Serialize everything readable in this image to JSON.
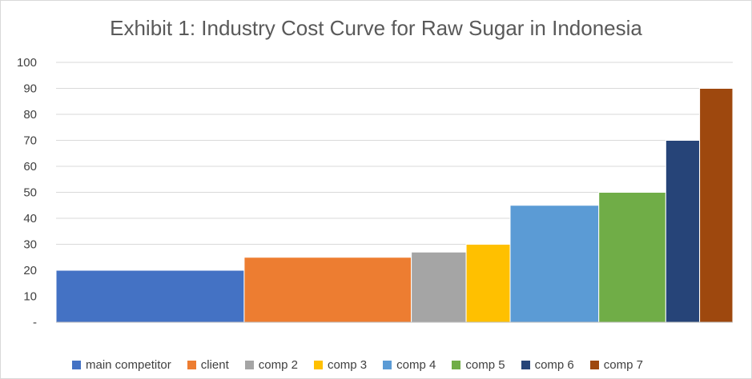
{
  "chart_data": {
    "type": "bar",
    "subtype": "variable-width cost curve",
    "title": "Exhibit 1: Industry Cost Curve for Raw Sugar in Indonesia",
    "xlabel": "",
    "ylabel": "",
    "ylim": [
      0,
      100
    ],
    "y_ticks": [
      "-",
      "10",
      "20",
      "30",
      "40",
      "50",
      "60",
      "70",
      "80",
      "90",
      "100"
    ],
    "grid": true,
    "legend_position": "bottom",
    "series": [
      {
        "name": "main competitor",
        "value": 20,
        "capacity_share": 0.278,
        "color": "#4472C4"
      },
      {
        "name": "client",
        "value": 25,
        "capacity_share": 0.247,
        "color": "#ED7D31"
      },
      {
        "name": "comp 2",
        "value": 27,
        "capacity_share": 0.081,
        "color": "#A5A5A5"
      },
      {
        "name": "comp 3",
        "value": 30,
        "capacity_share": 0.065,
        "color": "#FFC000"
      },
      {
        "name": "comp 4",
        "value": 45,
        "capacity_share": 0.131,
        "color": "#5B9BD5"
      },
      {
        "name": "comp 5",
        "value": 50,
        "capacity_share": 0.099,
        "color": "#70AD47"
      },
      {
        "name": "comp 6",
        "value": 70,
        "capacity_share": 0.05,
        "color": "#264478"
      },
      {
        "name": "comp 7",
        "value": 90,
        "capacity_share": 0.049,
        "color": "#9E480E"
      }
    ]
  }
}
